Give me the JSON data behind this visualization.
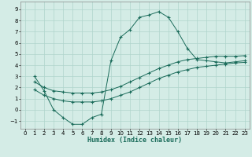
{
  "xlabel": "Humidex (Indice chaleur)",
  "background_color": "#d4ece6",
  "grid_color": "#afd4cc",
  "line_color": "#1a6b5a",
  "xlim": [
    -0.5,
    23.5
  ],
  "ylim": [
    -1.7,
    9.7
  ],
  "xticks": [
    0,
    1,
    2,
    3,
    4,
    5,
    6,
    7,
    8,
    9,
    10,
    11,
    12,
    13,
    14,
    15,
    16,
    17,
    18,
    19,
    20,
    21,
    22,
    23
  ],
  "yticks": [
    -1,
    0,
    1,
    2,
    3,
    4,
    5,
    6,
    7,
    8,
    9
  ],
  "line1_x": [
    1,
    2,
    3,
    4,
    5,
    6,
    7,
    8,
    9,
    10,
    11,
    12,
    13,
    14,
    15,
    16,
    17,
    18,
    19,
    20,
    21,
    22,
    23
  ],
  "line1_y": [
    3.0,
    1.7,
    0.0,
    -0.7,
    -1.3,
    -1.3,
    -0.7,
    -0.4,
    4.4,
    6.5,
    7.2,
    8.3,
    8.5,
    8.8,
    8.3,
    7.0,
    5.5,
    4.5,
    4.4,
    4.3,
    4.2,
    4.3,
    4.4
  ],
  "line2_x": [
    1,
    2,
    3,
    4,
    5,
    6,
    7,
    8,
    9,
    10,
    11,
    12,
    13,
    14,
    15,
    16,
    17,
    18,
    19,
    20,
    21,
    22,
    23
  ],
  "line2_y": [
    2.5,
    2.0,
    1.7,
    1.6,
    1.5,
    1.5,
    1.5,
    1.6,
    1.8,
    2.1,
    2.5,
    2.9,
    3.3,
    3.7,
    4.0,
    4.3,
    4.5,
    4.6,
    4.7,
    4.8,
    4.8,
    4.8,
    4.85
  ],
  "line3_x": [
    1,
    2,
    3,
    4,
    5,
    6,
    7,
    8,
    9,
    10,
    11,
    12,
    13,
    14,
    15,
    16,
    17,
    18,
    19,
    20,
    21,
    22,
    23
  ],
  "line3_y": [
    1.8,
    1.3,
    1.0,
    0.8,
    0.7,
    0.7,
    0.7,
    0.8,
    1.0,
    1.3,
    1.6,
    2.0,
    2.4,
    2.8,
    3.1,
    3.4,
    3.6,
    3.8,
    3.9,
    4.0,
    4.1,
    4.2,
    4.25
  ]
}
